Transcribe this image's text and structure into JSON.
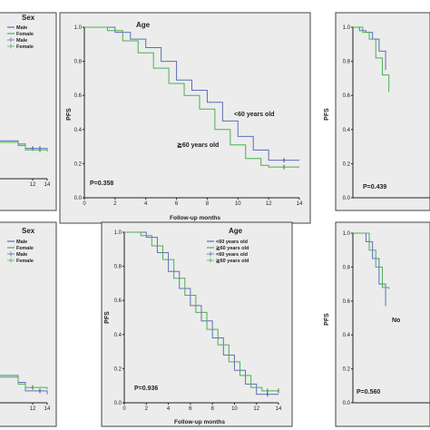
{
  "colors": {
    "blue": "#5b6fb8",
    "green": "#4caf50",
    "censor_blue": "#3949ab",
    "censor_green": "#2e7d32"
  },
  "chart_data": [
    {
      "id": "top-left",
      "type": "line",
      "title": "Sex",
      "legend": [
        "Male",
        "Female",
        "Male",
        "Female"
      ],
      "xlim": [
        0,
        14
      ],
      "ylim": [
        0,
        1
      ],
      "x_ticks": [
        "12",
        "14"
      ],
      "series": [
        {
          "color": "blue",
          "steps": [
            [
              0,
              0.25
            ],
            [
              10,
              0.22
            ],
            [
              11,
              0.2
            ],
            [
              14,
              0.19
            ]
          ],
          "censors": [
            12,
            13
          ]
        },
        {
          "color": "green",
          "steps": [
            [
              0,
              0.24
            ],
            [
              10,
              0.23
            ],
            [
              11,
              0.19
            ],
            [
              14,
              0.18
            ]
          ],
          "censors": [
            13
          ]
        }
      ]
    },
    {
      "id": "top-middle",
      "type": "line",
      "title": "Age",
      "p_value": "P=0.358",
      "xlabel": "Follow-up months",
      "ylabel": "PFS",
      "xlim": [
        0,
        14
      ],
      "ylim": [
        0,
        1
      ],
      "x_ticks": [
        "0",
        "2",
        "4",
        "6",
        "8",
        "10",
        "12",
        "14"
      ],
      "y_ticks": [
        "0.0",
        "0.2",
        "0.4",
        "0.6",
        "0.8",
        "1.0"
      ],
      "annotations": [
        "<60 years old",
        "≧60 years old"
      ],
      "series": [
        {
          "color": "blue",
          "steps": [
            [
              0,
              1.0
            ],
            [
              2,
              0.97
            ],
            [
              3,
              0.93
            ],
            [
              4,
              0.88
            ],
            [
              5,
              0.8
            ],
            [
              6,
              0.69
            ],
            [
              7,
              0.63
            ],
            [
              8,
              0.56
            ],
            [
              9,
              0.45
            ],
            [
              10,
              0.36
            ],
            [
              11,
              0.28
            ],
            [
              12,
              0.22
            ],
            [
              14,
              0.22
            ]
          ],
          "censors": [
            13
          ]
        },
        {
          "color": "green",
          "steps": [
            [
              0,
              1.0
            ],
            [
              1.5,
              0.98
            ],
            [
              2.5,
              0.92
            ],
            [
              3.5,
              0.85
            ],
            [
              4.5,
              0.76
            ],
            [
              5.5,
              0.67
            ],
            [
              6.5,
              0.6
            ],
            [
              7.5,
              0.52
            ],
            [
              8.5,
              0.4
            ],
            [
              9.5,
              0.31
            ],
            [
              10.5,
              0.23
            ],
            [
              11.5,
              0.19
            ],
            [
              12,
              0.18
            ],
            [
              14,
              0.18
            ]
          ],
          "censors": [
            13
          ]
        }
      ]
    },
    {
      "id": "top-right",
      "type": "line",
      "p_value": "P=0.439",
      "ylabel": "PFS",
      "xlim": [
        0,
        14
      ],
      "ylim": [
        0,
        1
      ],
      "y_ticks": [
        "0.0",
        "0.2",
        "0.4",
        "0.6",
        "0.8",
        "1.0"
      ],
      "series": [
        {
          "color": "blue",
          "steps": [
            [
              0,
              1.0
            ],
            [
              1,
              0.98
            ],
            [
              2,
              0.97
            ],
            [
              3,
              0.93
            ],
            [
              4,
              0.86
            ],
            [
              5,
              0.75
            ]
          ],
          "censors": []
        },
        {
          "color": "green",
          "steps": [
            [
              0,
              1.0
            ],
            [
              1.5,
              0.97
            ],
            [
              2.5,
              0.93
            ],
            [
              3.5,
              0.82
            ],
            [
              4.5,
              0.72
            ],
            [
              5.5,
              0.62
            ]
          ],
          "censors": []
        }
      ]
    },
    {
      "id": "bottom-left",
      "type": "line",
      "title": "Sex",
      "legend": [
        "Male",
        "Female",
        "Male",
        "Female"
      ],
      "xlim": [
        0,
        14
      ],
      "ylim": [
        0,
        1
      ],
      "x_ticks": [
        "12",
        "14"
      ],
      "series": [
        {
          "color": "blue",
          "steps": [
            [
              0,
              0.16
            ],
            [
              10,
              0.12
            ],
            [
              11,
              0.07
            ],
            [
              14,
              0.05
            ]
          ],
          "censors": [
            13
          ]
        },
        {
          "color": "green",
          "steps": [
            [
              0,
              0.15
            ],
            [
              10,
              0.11
            ],
            [
              11,
              0.09
            ],
            [
              14,
              0.08
            ]
          ],
          "censors": [
            12
          ]
        }
      ]
    },
    {
      "id": "bottom-middle",
      "type": "line",
      "title": "Age",
      "p_value": "P=0.936",
      "xlabel": "Follow-up months",
      "ylabel": "PFS",
      "xlim": [
        0,
        14
      ],
      "ylim": [
        0,
        1
      ],
      "x_ticks": [
        "0",
        "2",
        "4",
        "6",
        "8",
        "10",
        "12",
        "14"
      ],
      "y_ticks": [
        "0.0",
        "0.2",
        "0.4",
        "0.6",
        "0.8",
        "1.0"
      ],
      "legend": [
        "<60 years old",
        "≧60 years old",
        "<60 years old",
        "≧60 years old"
      ],
      "series": [
        {
          "color": "blue",
          "steps": [
            [
              0,
              1.0
            ],
            [
              2,
              0.97
            ],
            [
              3,
              0.88
            ],
            [
              4,
              0.77
            ],
            [
              5,
              0.67
            ],
            [
              6,
              0.57
            ],
            [
              7,
              0.48
            ],
            [
              8,
              0.38
            ],
            [
              9,
              0.28
            ],
            [
              10,
              0.19
            ],
            [
              11,
              0.11
            ],
            [
              12,
              0.05
            ],
            [
              14,
              0.05
            ]
          ],
          "censors": [
            13
          ]
        },
        {
          "color": "green",
          "steps": [
            [
              0,
              1.0
            ],
            [
              1.5,
              0.98
            ],
            [
              2.5,
              0.92
            ],
            [
              3.5,
              0.84
            ],
            [
              4.5,
              0.73
            ],
            [
              5.5,
              0.63
            ],
            [
              6.5,
              0.53
            ],
            [
              7.5,
              0.43
            ],
            [
              8.5,
              0.34
            ],
            [
              9.5,
              0.24
            ],
            [
              10.5,
              0.16
            ],
            [
              11.5,
              0.09
            ],
            [
              12.5,
              0.07
            ],
            [
              14,
              0.07
            ]
          ],
          "censors": [
            13,
            14
          ]
        }
      ]
    },
    {
      "id": "bottom-right",
      "type": "line",
      "p_value": "P=0.560",
      "ylabel": "PFS",
      "annotations": [
        "No"
      ],
      "xlim": [
        0,
        14
      ],
      "ylim": [
        0,
        1
      ],
      "y_ticks": [
        "0.0",
        "0.2",
        "0.4",
        "0.6",
        "0.8",
        "1.0"
      ],
      "series": [
        {
          "color": "blue",
          "steps": [
            [
              0,
              1.0
            ],
            [
              2,
              0.95
            ],
            [
              3,
              0.85
            ],
            [
              4,
              0.7
            ],
            [
              5,
              0.57
            ]
          ],
          "censors": []
        },
        {
          "color": "green",
          "steps": [
            [
              0,
              1.0
            ],
            [
              2.5,
              0.9
            ],
            [
              3.5,
              0.8
            ],
            [
              4.5,
              0.68
            ],
            [
              5.5,
              0.67
            ]
          ],
          "censors": []
        }
      ]
    }
  ]
}
